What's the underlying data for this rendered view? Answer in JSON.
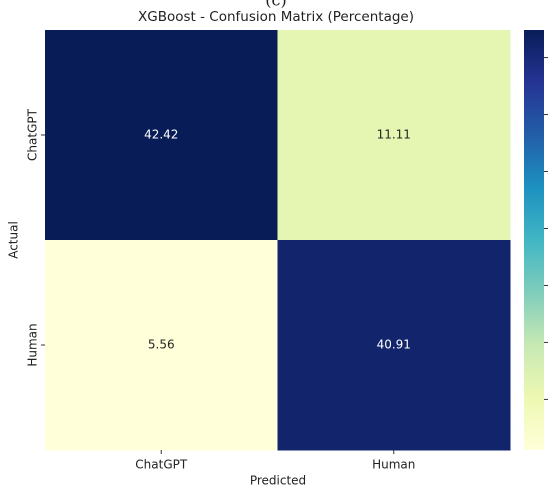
{
  "chart_data": {
    "type": "heatmap",
    "panel_label": "(c)",
    "title": "XGBoost - Confusion Matrix (Percentage)",
    "xlabel": "Predicted",
    "ylabel": "Actual",
    "x_categories": [
      "ChatGPT",
      "Human"
    ],
    "y_categories": [
      "ChatGPT",
      "Human"
    ],
    "values": [
      [
        42.42,
        11.11
      ],
      [
        5.56,
        40.91
      ]
    ],
    "colormap": [
      "#ffffd9",
      "#edf8b1",
      "#c7e9b4",
      "#7fcdbb",
      "#41b6c4",
      "#1d91c0",
      "#225ea8",
      "#253494",
      "#081d58"
    ],
    "clim": [
      5.56,
      42.42
    ],
    "cticks": [
      10,
      15,
      20,
      25,
      30,
      35,
      40
    ]
  }
}
